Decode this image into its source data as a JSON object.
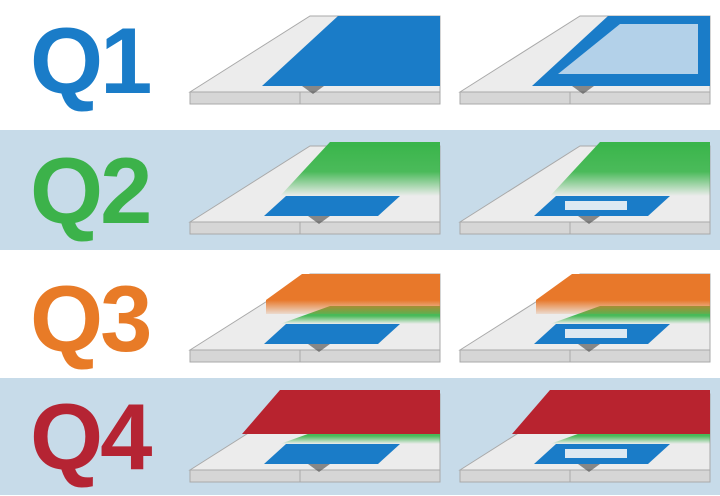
{
  "rows": [
    {
      "label": "Q1",
      "color": "#1a7cc8",
      "shaded": false,
      "layers": [
        "blue"
      ]
    },
    {
      "label": "Q2",
      "color": "#3cb24a",
      "shaded": true,
      "layers": [
        "blue",
        "green"
      ]
    },
    {
      "label": "Q3",
      "color": "#e87b27",
      "shaded": false,
      "layers": [
        "blue",
        "green",
        "orange"
      ]
    },
    {
      "label": "Q4",
      "color": "#b52433",
      "shaded": true,
      "layers": [
        "blue",
        "green",
        "red"
      ]
    }
  ],
  "layer_colors": {
    "blue": "#1a7cc8",
    "green": "#39b54a",
    "orange": "#e8782a",
    "red": "#b8232f"
  },
  "slab_colors": {
    "top": "#ececec",
    "side": "#d6d6d6",
    "edge": "#a9a9a9"
  }
}
